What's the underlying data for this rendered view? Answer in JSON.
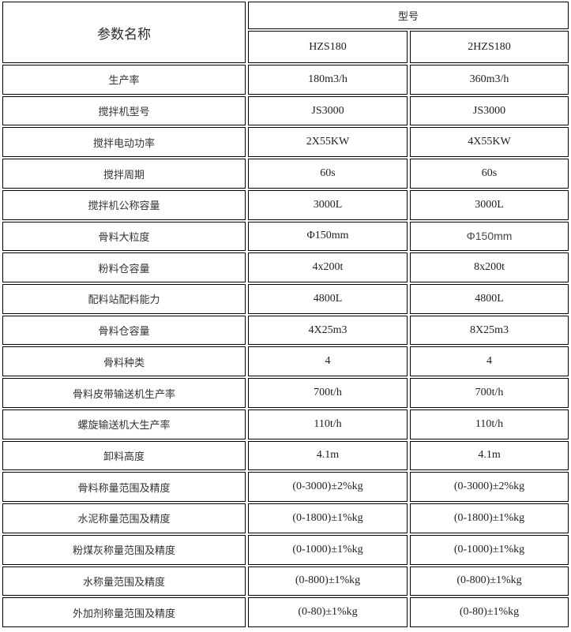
{
  "chart_data": {
    "type": "table",
    "title": "",
    "header": {
      "param": "参数名称",
      "model_group": "型号",
      "models": [
        "HZS180",
        "2HZS180"
      ]
    },
    "rows": [
      {
        "label": "生产率",
        "values": [
          "180m3/h",
          "360m3/h"
        ]
      },
      {
        "label": "搅拌机型号",
        "values": [
          "JS3000",
          "JS3000"
        ]
      },
      {
        "label": "搅拌电动功率",
        "values": [
          "2X55KW",
          "4X55KW"
        ]
      },
      {
        "label": "搅拌周期",
        "values": [
          "60s",
          "60s"
        ]
      },
      {
        "label": "搅拌机公称容量",
        "values": [
          "3000L",
          "3000L"
        ]
      },
      {
        "label": "骨料大粒度",
        "values": [
          "Φ150mm",
          "Φ150mm"
        ]
      },
      {
        "label": "粉料仓容量",
        "values": [
          "4x200t",
          "8x200t"
        ]
      },
      {
        "label": "配料站配料能力",
        "values": [
          "4800L",
          "4800L"
        ]
      },
      {
        "label": "骨料仓容量",
        "values": [
          "4X25m3",
          "8X25m3"
        ]
      },
      {
        "label": "骨料种类",
        "values": [
          "4",
          "4"
        ]
      },
      {
        "label": "骨料皮带输送机生产率",
        "values": [
          "700t/h",
          "700t/h"
        ]
      },
      {
        "label": "螺旋输送机大生产率",
        "values": [
          "110t/h",
          "110t/h"
        ]
      },
      {
        "label": "卸料高度",
        "values": [
          "4.1m",
          "4.1m"
        ]
      },
      {
        "label": "骨料称量范围及精度",
        "values": [
          "(0-3000)±2%kg",
          "(0-3000)±2%kg"
        ]
      },
      {
        "label": "水泥称量范围及精度",
        "values": [
          "(0-1800)±1%kg",
          "(0-1800)±1%kg"
        ]
      },
      {
        "label": "粉煤灰称量范围及精度",
        "values": [
          "(0-1000)±1%kg",
          "(0-1000)±1%kg"
        ]
      },
      {
        "label": "水称量范围及精度",
        "values": [
          "(0-800)±1%kg",
          "(0-800)±1%kg"
        ]
      },
      {
        "label": "外加剂称量范围及精度",
        "values": [
          "(0-80)±1%kg",
          "(0-80)±1%kg"
        ]
      }
    ],
    "colors": {
      "border": "#000000",
      "background": "#ffffff",
      "text": "#1f1f1f"
    }
  }
}
